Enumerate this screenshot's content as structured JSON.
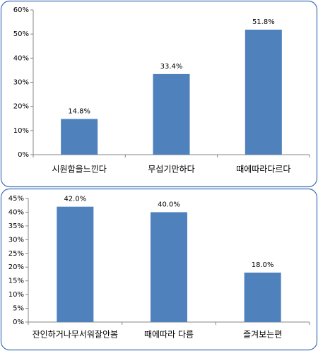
{
  "chart_data": [
    {
      "type": "bar",
      "categories": [
        "시원함을느낀다",
        "무섭기만하다",
        "때에따라다르다"
      ],
      "values": [
        14.8,
        33.4,
        51.8
      ],
      "value_labels": [
        "14.8%",
        "33.4%",
        "51.8%"
      ],
      "color": "#4f81bd",
      "ylim": [
        0,
        60
      ],
      "yticks": [
        {
          "value": 0,
          "label": "0%"
        },
        {
          "value": 10,
          "label": "10%"
        },
        {
          "value": 20,
          "label": "20%"
        },
        {
          "value": 30,
          "label": "30%"
        },
        {
          "value": 40,
          "label": "40%"
        },
        {
          "value": 50,
          "label": "50%"
        },
        {
          "value": 60,
          "label": "60%"
        }
      ]
    },
    {
      "type": "bar",
      "categories": [
        "잔인하거나무서워잘안봄",
        "때에따라 다름",
        "즐겨보는편"
      ],
      "values": [
        42.0,
        40.0,
        18.0
      ],
      "value_labels": [
        "42.0%",
        "40.0%",
        "18.0%"
      ],
      "color": "#4f81bd",
      "ylim": [
        0,
        45
      ],
      "yticks": [
        {
          "value": 0,
          "label": "0%"
        },
        {
          "value": 5,
          "label": "5%"
        },
        {
          "value": 10,
          "label": "10%"
        },
        {
          "value": 15,
          "label": "15%"
        },
        {
          "value": 20,
          "label": "20%"
        },
        {
          "value": 25,
          "label": "25%"
        },
        {
          "value": 30,
          "label": "30%"
        },
        {
          "value": 35,
          "label": "35%"
        },
        {
          "value": 40,
          "label": "40%"
        },
        {
          "value": 45,
          "label": "45%"
        }
      ]
    }
  ]
}
